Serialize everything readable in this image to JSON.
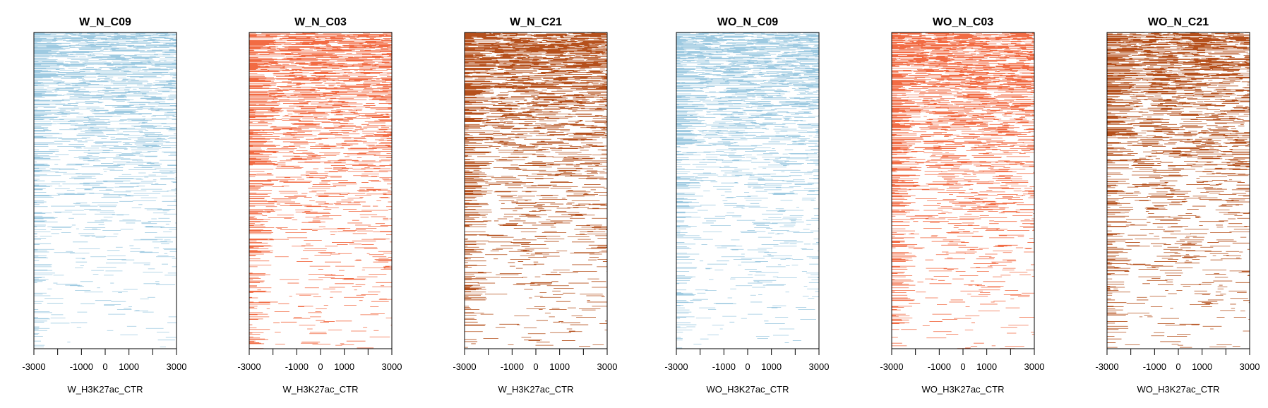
{
  "chart_data": [
    {
      "type": "heatmap",
      "title": "W_N_C09",
      "xlabel": "W_H3K27ac_CTR",
      "xlim": [
        -3000,
        3000
      ],
      "xticks": [
        -3000,
        -2000,
        -1000,
        0,
        1000,
        2000,
        3000
      ],
      "xtick_labels": [
        "-3000",
        "",
        "-1000",
        "0",
        "1000",
        "",
        "3000"
      ],
      "color": "#9ecae1",
      "rows": 600,
      "density": {
        "top": 0.78,
        "bottom": 0.12
      },
      "center_concentration": "uniform"
    },
    {
      "type": "heatmap",
      "title": "W_N_C03",
      "xlabel": "W_H3K27ac_CTR",
      "xlim": [
        -3000,
        3000
      ],
      "xticks": [
        -3000,
        -2000,
        -1000,
        0,
        1000,
        2000,
        3000
      ],
      "xtick_labels": [
        "-3000",
        "",
        "-1000",
        "0",
        "1000",
        "",
        "3000"
      ],
      "color": "#f26b43",
      "rows": 600,
      "density": {
        "top": 0.82,
        "bottom": 0.18
      },
      "center_concentration": "uniform"
    },
    {
      "type": "heatmap",
      "title": "W_N_C21",
      "xlabel": "W_H3K27ac_CTR",
      "xlim": [
        -3000,
        3000
      ],
      "xticks": [
        -3000,
        -2000,
        -1000,
        0,
        1000,
        2000,
        3000
      ],
      "xtick_labels": [
        "-3000",
        "",
        "-1000",
        "0",
        "1000",
        "",
        "3000"
      ],
      "color": "#b5501c",
      "rows": 600,
      "density": {
        "top": 0.82,
        "bottom": 0.2
      },
      "center_concentration": "uniform"
    },
    {
      "type": "heatmap",
      "title": "WO_N_C09",
      "xlabel": "WO_H3K27ac_CTR",
      "xlim": [
        -3000,
        3000
      ],
      "xticks": [
        -3000,
        -2000,
        -1000,
        0,
        1000,
        2000,
        3000
      ],
      "xtick_labels": [
        "-3000",
        "",
        "-1000",
        "0",
        "1000",
        "",
        "3000"
      ],
      "color": "#9ecae1",
      "rows": 600,
      "density": {
        "top": 0.8,
        "bottom": 0.15
      },
      "center_concentration": "uniform"
    },
    {
      "type": "heatmap",
      "title": "WO_N_C03",
      "xlabel": "WO_H3K27ac_CTR",
      "xlim": [
        -3000,
        3000
      ],
      "xticks": [
        -3000,
        -2000,
        -1000,
        0,
        1000,
        2000,
        3000
      ],
      "xtick_labels": [
        "-3000",
        "",
        "-1000",
        "0",
        "1000",
        "",
        "3000"
      ],
      "color": "#f26b43",
      "rows": 600,
      "density": {
        "top": 0.84,
        "bottom": 0.2
      },
      "center_concentration": "uniform"
    },
    {
      "type": "heatmap",
      "title": "WO_N_C21",
      "xlabel": "WO_H3K27ac_CTR",
      "xlim": [
        -3000,
        3000
      ],
      "xticks": [
        -3000,
        -2000,
        -1000,
        0,
        1000,
        2000,
        3000
      ],
      "xtick_labels": [
        "-3000",
        "",
        "-1000",
        "0",
        "1000",
        "",
        "3000"
      ],
      "color": "#b5501c",
      "rows": 600,
      "density": {
        "top": 0.82,
        "bottom": 0.2
      },
      "center_concentration": "uniform"
    }
  ]
}
